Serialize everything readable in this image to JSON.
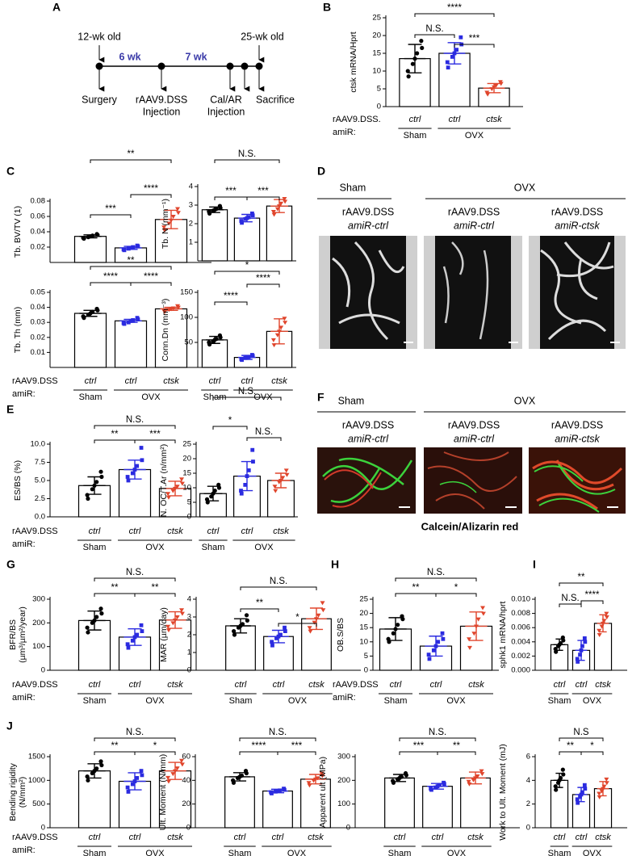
{
  "panel_labels": [
    "A",
    "B",
    "C",
    "D",
    "E",
    "F",
    "G",
    "H",
    "I",
    "J"
  ],
  "timeline": {
    "ages": [
      "12-wk old",
      "25-wk old"
    ],
    "intervals": [
      "6 wk",
      "7 wk"
    ],
    "events": [
      [
        "Surgery"
      ],
      [
        "rAAV9.DSS",
        "Injection"
      ],
      [
        "Cal/AR",
        "Injection"
      ],
      [
        "Sacrifice"
      ]
    ]
  },
  "micrographs": [
    {
      "groups": [
        "Sham",
        "OVX"
      ],
      "labels": [
        [
          "rAAV9.DSS",
          "amiR-ctrl"
        ],
        [
          "rAAV9.DSS",
          "amiR-ctrl"
        ],
        [
          "rAAV9.DSS",
          "amiR-ctsk"
        ]
      ]
    },
    {
      "groups": [
        "Sham",
        "OVX"
      ],
      "labels": [
        [
          "rAAV9.DSS",
          "amiR-ctrl"
        ],
        [
          "rAAV9.DSS",
          "amiR-ctrl"
        ],
        [
          "rAAV9.DSS",
          "amiR-ctsk"
        ]
      ],
      "caption": "Calcein/Alizarin red"
    }
  ],
  "chart_data": [
    {
      "type": "bar",
      "ylabel": [
        "ctsk mRNA/Hprt"
      ],
      "ylim": [
        0,
        25
      ],
      "yticks": [
        0,
        5,
        10,
        15,
        20,
        25
      ],
      "categories": [
        "ctrl",
        "ctrl",
        "ctsk"
      ],
      "groups": [
        "Sham",
        "OVX"
      ],
      "row_label": [
        "rAAV9.DSS.",
        "amiR:"
      ],
      "colors": [
        "#000000",
        "#2b2be0",
        "#e0452c"
      ],
      "values": [
        13.5,
        15,
        5.2
      ],
      "errors": [
        4,
        3,
        1.3
      ],
      "points": [
        [
          8.5,
          10,
          12,
          13.5,
          15,
          16.5,
          18.5
        ],
        [
          11,
          12.5,
          14,
          15,
          16,
          17.5,
          19.5
        ],
        [
          3.5,
          4,
          5,
          5.5,
          6,
          6.5,
          7
        ]
      ],
      "sig_13": "****",
      "sig_12": "N.S.",
      "sig_23": "***"
    },
    {
      "type": "bar",
      "ylabel": [
        "Tb. BV/TV (1)"
      ],
      "ylim": [
        0,
        0.08
      ],
      "yticks": [
        0.02,
        0.04,
        0.06,
        0.08
      ],
      "colors": [
        "#000000",
        "#2b2be0",
        "#e0452c"
      ],
      "values": [
        0.034,
        0.019,
        0.056
      ],
      "errors": [
        0.002,
        0.002,
        0.012
      ],
      "points": [
        [
          0.031,
          0.032,
          0.033,
          0.034,
          0.035,
          0.036,
          0.037
        ],
        [
          0.016,
          0.017,
          0.018,
          0.019,
          0.02,
          0.021,
          0.022
        ],
        [
          0.042,
          0.046,
          0.051,
          0.055,
          0.06,
          0.065,
          0.07
        ]
      ],
      "sig_13": "**",
      "sig_12": "***",
      "sig_23": "****"
    },
    {
      "type": "bar",
      "ylabel": [
        "Tb. N (mm⁻¹)"
      ],
      "ylim": [
        0,
        4
      ],
      "yticks": [
        1,
        2,
        3,
        4
      ],
      "colors": [
        "#000000",
        "#2b2be0",
        "#e0452c"
      ],
      "values": [
        2.75,
        2.3,
        2.95
      ],
      "errors": [
        0.15,
        0.2,
        0.35
      ],
      "points": [
        [
          2.55,
          2.65,
          2.7,
          2.75,
          2.8,
          2.85,
          2.95
        ],
        [
          2.05,
          2.15,
          2.25,
          2.3,
          2.35,
          2.45,
          2.55
        ],
        [
          2.5,
          2.65,
          2.8,
          2.95,
          3.1,
          3.2,
          3.35
        ]
      ],
      "sig_13": "N.S.",
      "sig_12": "***",
      "sig_23": "***"
    },
    {
      "type": "bar",
      "ylabel": [
        "Tb. Th (mm)"
      ],
      "ylim": [
        0,
        0.05
      ],
      "yticks": [
        0.01,
        0.02,
        0.03,
        0.04,
        0.05
      ],
      "categories": [
        "ctrl",
        "ctrl",
        "ctsk"
      ],
      "groups": [
        "Sham",
        "OVX"
      ],
      "row_label": [
        "rAAV9.DSS",
        "amiR:"
      ],
      "colors": [
        "#000000",
        "#2b2be0",
        "#e0452c"
      ],
      "values": [
        0.036,
        0.031,
        0.039
      ],
      "errors": [
        0.002,
        0.001,
        0.001
      ],
      "points": [
        [
          0.033,
          0.034,
          0.035,
          0.036,
          0.037,
          0.038,
          0.039
        ],
        [
          0.029,
          0.0295,
          0.03,
          0.031,
          0.0315,
          0.032,
          0.033
        ],
        [
          0.037,
          0.038,
          0.0385,
          0.039,
          0.0395,
          0.04,
          0.041
        ]
      ],
      "sig_13": "**",
      "sig_12": "****",
      "sig_23": "****"
    },
    {
      "type": "bar",
      "ylabel": [
        "Conn.Dn (mm⁻³)"
      ],
      "ylim": [
        0,
        150
      ],
      "yticks": [
        50,
        100,
        150
      ],
      "categories": [
        "ctrl",
        "ctrl",
        "ctsk"
      ],
      "groups": [
        "Sham",
        "OVX"
      ],
      "colors": [
        "#000000",
        "#2b2be0",
        "#e0452c"
      ],
      "values": [
        55,
        20,
        72
      ],
      "errors": [
        7,
        4,
        25
      ],
      "points": [
        [
          46,
          50,
          52,
          55,
          57,
          60,
          64
        ],
        [
          15,
          17,
          19,
          20,
          21,
          23,
          25
        ],
        [
          45,
          55,
          65,
          72,
          80,
          90,
          98
        ]
      ],
      "sig_13": "*",
      "sig_12": "****",
      "sig_23": "****"
    },
    {
      "type": "bar",
      "ylabel": [
        "ES/BS (%)"
      ],
      "ylim": [
        0,
        10
      ],
      "yticks": [
        {
          "value": 0,
          "label": "0.0"
        },
        2.5,
        {
          "value": 5,
          "label": "5.0"
        },
        7.5,
        {
          "value": 10,
          "label": "10.0"
        }
      ],
      "categories": [
        "ctrl",
        "ctrl",
        "ctsk"
      ],
      "groups": [
        "Sham",
        "OVX"
      ],
      "row_label": [
        "rAAV9.DSS",
        "amiR:"
      ],
      "colors": [
        "#000000",
        "#2b2be0",
        "#e0452c"
      ],
      "values": [
        4.3,
        6.5,
        3.9
      ],
      "errors": [
        1.2,
        1.3,
        1
      ],
      "points": [
        [
          2.5,
          3,
          3.8,
          4.3,
          4.8,
          5.5,
          6.2
        ],
        [
          5,
          5.5,
          6,
          6.5,
          7,
          7.8,
          9.5
        ],
        [
          2.7,
          3.2,
          3.6,
          3.9,
          4.2,
          4.6,
          5.2
        ]
      ],
      "sig_13": "N.S.",
      "sig_12": "**",
      "sig_23": "***"
    },
    {
      "type": "bar",
      "ylabel": [
        "N. OC/T.Ar (n/mm²)"
      ],
      "ylim": [
        0,
        25
      ],
      "yticks": [
        0,
        5,
        10,
        15,
        20,
        25
      ],
      "categories": [
        "ctrl",
        "ctrl",
        "ctsk"
      ],
      "groups": [
        "Sham",
        "OVX"
      ],
      "colors": [
        "#000000",
        "#2b2be0",
        "#e0452c"
      ],
      "values": [
        8,
        14,
        12.5
      ],
      "errors": [
        2.5,
        5,
        2.5
      ],
      "points": [
        [
          5,
          6,
          7,
          8,
          9,
          10,
          11
        ],
        [
          8,
          9,
          11,
          14,
          16,
          19,
          23
        ],
        [
          9,
          10.5,
          12,
          12.5,
          13.5,
          14.5,
          16
        ]
      ],
      "sig_13": "N.S.",
      "sig_12": "*",
      "sig_23": "N.S."
    },
    {
      "type": "bar",
      "ylabel": [
        "BFR/BS",
        "(µm³/µm²/year)"
      ],
      "ylim": [
        0,
        300
      ],
      "yticks": [
        0,
        100,
        200,
        300
      ],
      "categories": [
        "ctrl",
        "ctrl",
        "ctsk"
      ],
      "groups": [
        "Sham",
        "OVX"
      ],
      "row_label": [
        "rAAV9.DSS",
        "amiR:"
      ],
      "colors": [
        "#000000",
        "#2b2be0",
        "#e0452c"
      ],
      "values": [
        210,
        140,
        212
      ],
      "errors": [
        40,
        35,
        35
      ],
      "points": [
        [
          160,
          180,
          200,
          210,
          225,
          240,
          260
        ],
        [
          95,
          110,
          125,
          140,
          150,
          165,
          190
        ],
        [
          170,
          185,
          200,
          212,
          225,
          240,
          255
        ]
      ],
      "sig_13": "N.S.",
      "sig_12": "**",
      "sig_23": "**"
    },
    {
      "type": "bar",
      "ylabel": [
        "MAR (µm/day)"
      ],
      "ylim": [
        0,
        4
      ],
      "yticks": [
        0,
        1,
        2,
        3,
        4
      ],
      "categories": [
        "ctrl",
        "ctrl",
        "ctsk"
      ],
      "groups": [
        "Sham",
        "OVX"
      ],
      "colors": [
        "#000000",
        "#2b2be0",
        "#e0452c"
      ],
      "values": [
        2.5,
        1.9,
        2.9
      ],
      "errors": [
        0.4,
        0.35,
        0.6
      ],
      "points": [
        [
          2,
          2.2,
          2.4,
          2.5,
          2.6,
          2.8,
          3.1
        ],
        [
          1.4,
          1.6,
          1.8,
          1.9,
          2,
          2.2,
          2.4
        ],
        [
          2.2,
          2.4,
          2.7,
          2.9,
          3.1,
          3.4,
          3.8
        ]
      ],
      "sig_13": "N.S.",
      "sig_12": "**",
      "sig_23": "*"
    },
    {
      "type": "bar",
      "ylabel": [
        "OB.S/BS"
      ],
      "ylim": [
        0,
        25
      ],
      "yticks": [
        0,
        5,
        10,
        15,
        20,
        25
      ],
      "categories": [
        "ctrl",
        "ctrl",
        "ctsk"
      ],
      "groups": [
        "Sham",
        "OVX"
      ],
      "row_label": [
        "rAAV9.DSS",
        "amiR:"
      ],
      "colors": [
        "#000000",
        "#2b2be0",
        "#e0452c"
      ],
      "values": [
        14.5,
        8.5,
        15.5
      ],
      "errors": [
        4,
        3.5,
        5
      ],
      "points": [
        [
          10,
          11,
          13,
          14.5,
          16,
          18,
          19
        ],
        [
          4,
          5.5,
          7,
          8.5,
          10,
          11,
          13
        ],
        [
          8,
          11,
          13,
          15.5,
          18,
          20,
          22
        ]
      ],
      "sig_13": "N.S.",
      "sig_12": "**",
      "sig_23": "*"
    },
    {
      "type": "bar",
      "ylabel": [
        "sphk1 mRNA/hprt"
      ],
      "ylim": [
        0,
        0.01
      ],
      "yticks": [
        {
          "value": 0,
          "label": "0.000"
        },
        {
          "value": 0.002,
          "label": "0.002"
        },
        {
          "value": 0.004,
          "label": "0.004"
        },
        {
          "value": 0.006,
          "label": "0.006"
        },
        {
          "value": 0.008,
          "label": "0.008"
        },
        {
          "value": 0.01,
          "label": "0.010"
        }
      ],
      "categories": [
        "ctrl",
        "ctrl",
        "ctsk"
      ],
      "groups": [
        "Sham",
        "OVX"
      ],
      "colors": [
        "#000000",
        "#2b2be0",
        "#e0452c"
      ],
      "values": [
        0.0036,
        0.0028,
        0.0066
      ],
      "errors": [
        0.0008,
        0.0014,
        0.0012
      ],
      "points": [
        [
          0.0026,
          0.003,
          0.0034,
          0.0036,
          0.0038,
          0.0042,
          0.0046
        ],
        [
          0.0012,
          0.0016,
          0.0022,
          0.0028,
          0.0034,
          0.004,
          0.0045
        ],
        [
          0.005,
          0.0056,
          0.0062,
          0.0066,
          0.007,
          0.0075,
          0.008
        ]
      ],
      "sig_13": "**",
      "sig_12": "N.S.",
      "sig_23": "****"
    },
    {
      "type": "bar",
      "ylabel": [
        "Bending rigidity",
        "(N/mm²)"
      ],
      "ylim": [
        0,
        1500
      ],
      "yticks": [
        0,
        500,
        1000,
        1500
      ],
      "categories": [
        "ctrl",
        "ctrl",
        "ctsk"
      ],
      "groups": [
        "Sham",
        "OVX"
      ],
      "row_label": [
        "rAAV9.DSS",
        "amiR:"
      ],
      "colors": [
        "#000000",
        "#2b2be0",
        "#e0452c"
      ],
      "values": [
        1200,
        980,
        1200
      ],
      "errors": [
        150,
        180,
        180
      ],
      "points": [
        [
          1000,
          1080,
          1150,
          1200,
          1250,
          1320,
          1400
        ],
        [
          760,
          850,
          920,
          980,
          1050,
          1110,
          1200
        ],
        [
          980,
          1060,
          1140,
          1200,
          1260,
          1340,
          1420
        ]
      ],
      "sig_13": "N.S.",
      "sig_12": "**",
      "sig_23": "*"
    },
    {
      "type": "bar",
      "ylabel": [
        "Ult. Moment (N/mm)"
      ],
      "ylim": [
        0,
        60
      ],
      "yticks": [
        0,
        20,
        40,
        60
      ],
      "categories": [
        "ctrl",
        "ctrl",
        "ctsk"
      ],
      "groups": [
        "Sham",
        "OVX"
      ],
      "colors": [
        "#000000",
        "#2b2be0",
        "#e0452c"
      ],
      "values": [
        43,
        31,
        41
      ],
      "errors": [
        3.5,
        1.5,
        4
      ],
      "points": [
        [
          38,
          40,
          42,
          43,
          44,
          46,
          48
        ],
        [
          29,
          30,
          30.5,
          31,
          31.5,
          32,
          33
        ],
        [
          36,
          38,
          40,
          41,
          42,
          44,
          46
        ]
      ],
      "sig_13": "N.S.",
      "sig_12": "****",
      "sig_23": "***"
    },
    {
      "type": "bar",
      "ylabel": [
        "Apparent ult (MPa)"
      ],
      "ylim": [
        0,
        300
      ],
      "yticks": [
        0,
        100,
        200,
        300
      ],
      "categories": [
        "ctrl",
        "ctrl",
        "ctsk"
      ],
      "groups": [
        "Sham",
        "OVX"
      ],
      "colors": [
        "#000000",
        "#2b2be0",
        "#e0452c"
      ],
      "values": [
        210,
        175,
        210
      ],
      "errors": [
        15,
        12,
        25
      ],
      "points": [
        [
          190,
          198,
          205,
          210,
          215,
          222,
          230
        ],
        [
          160,
          165,
          170,
          175,
          180,
          185,
          190
        ],
        [
          185,
          195,
          202,
          210,
          218,
          228,
          240
        ]
      ],
      "sig_13": "N.S.",
      "sig_12": "***",
      "sig_23": "**"
    },
    {
      "type": "bar",
      "ylabel": [
        "Work to Ult. Moment (mJ)"
      ],
      "ylim": [
        0,
        6
      ],
      "yticks": [
        0,
        2,
        4,
        6
      ],
      "categories": [
        "ctrl",
        "ctrl",
        "ctsk"
      ],
      "groups": [
        "Sham",
        "OVX"
      ],
      "colors": [
        "#000000",
        "#2b2be0",
        "#e0452c"
      ],
      "values": [
        4,
        2.8,
        3.3
      ],
      "errors": [
        0.6,
        0.6,
        0.6
      ],
      "points": [
        [
          3.2,
          3.5,
          3.8,
          4,
          4.2,
          4.5,
          4.9
        ],
        [
          2.1,
          2.4,
          2.6,
          2.8,
          3,
          3.3,
          3.6
        ],
        [
          2.6,
          2.9,
          3.1,
          3.3,
          3.5,
          3.8,
          4.1
        ]
      ],
      "sig_13": "N.S",
      "sig_12": "**",
      "sig_23": "*"
    }
  ]
}
